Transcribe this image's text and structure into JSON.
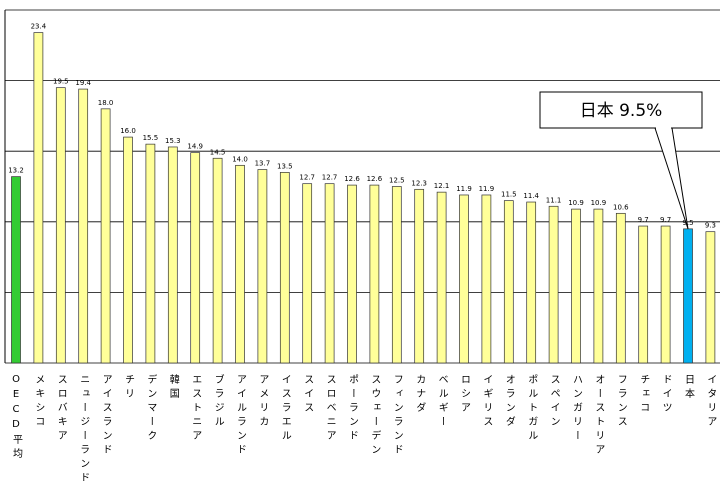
{
  "chart_data": {
    "type": "bar",
    "categories": [
      "OECD平均",
      "メキシコ",
      "スロバキア",
      "ニュージーランド",
      "アイスランド",
      "チリ",
      "デンマーク",
      "韓国",
      "エストニア",
      "ブラジル",
      "アイルランド",
      "アメリカ",
      "イスラエル",
      "スイス",
      "スロベニア",
      "ポーランド",
      "スウェーデン",
      "フィンランド",
      "カナダ",
      "ベルギー",
      "ロシア",
      "イギリス",
      "オランダ",
      "ポルトガル",
      "スペイン",
      "ハンガリー",
      "オーストリア",
      "フランス",
      "チェコ",
      "ドイツ",
      "日本",
      "イタリア"
    ],
    "values": [
      13.2,
      23.4,
      19.5,
      19.4,
      18.0,
      16.0,
      15.5,
      15.3,
      14.9,
      14.5,
      14.0,
      13.7,
      13.5,
      12.7,
      12.7,
      12.6,
      12.6,
      12.5,
      12.3,
      12.1,
      11.9,
      11.9,
      11.5,
      11.4,
      11.1,
      10.9,
      10.9,
      10.6,
      9.7,
      9.7,
      9.5,
      9.3
    ],
    "value_labels": [
      "13.2",
      "23.4",
      "19.5",
      "19.4",
      "18.0",
      "16.0",
      "15.5",
      "15.3",
      "14.9",
      "14.5",
      "14.0",
      "13.7",
      "13.5",
      "12.7",
      "12.7",
      "12.6",
      "12.6",
      "12.5",
      "12.3",
      "12.1",
      "11.9",
      "11.9",
      "11.5",
      "11.4",
      "11.1",
      "10.9",
      "10.9",
      "10.6",
      "9.7",
      "9.7",
      "9.5",
      "9.3"
    ],
    "colors": [
      "#33cc33",
      "#ffff99",
      "#ffff99",
      "#ffff99",
      "#ffff99",
      "#ffff99",
      "#ffff99",
      "#ffff99",
      "#ffff99",
      "#ffff99",
      "#ffff99",
      "#ffff99",
      "#ffff99",
      "#ffff99",
      "#ffff99",
      "#ffff99",
      "#ffff99",
      "#ffff99",
      "#ffff99",
      "#ffff99",
      "#ffff99",
      "#ffff99",
      "#ffff99",
      "#ffff99",
      "#ffff99",
      "#ffff99",
      "#ffff99",
      "#ffff99",
      "#ffff99",
      "#ffff99",
      "#00b0f0",
      "#ffff99"
    ],
    "ylim": [
      0,
      25
    ],
    "yticks": [
      0,
      5,
      10,
      15,
      20,
      25
    ],
    "grid": true,
    "annotation": "日本 9.5%"
  }
}
